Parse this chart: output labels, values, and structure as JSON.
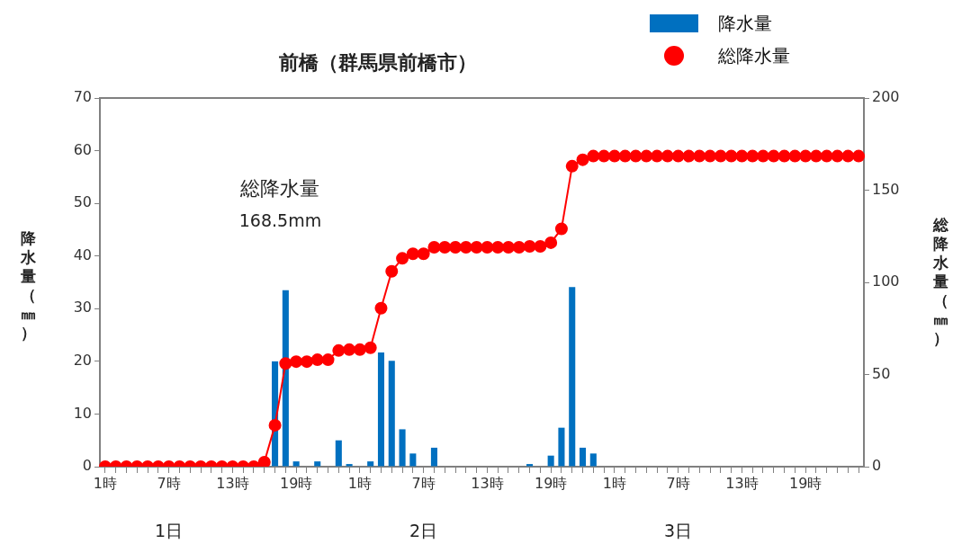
{
  "chart_data": {
    "type": "bar",
    "title": "前橋（群馬県前橋市）",
    "ylabel": "降水量（㎜）",
    "y2label": "総降水量（㎜）",
    "categories": [
      "1時",
      null,
      null,
      null,
      null,
      null,
      "7時",
      null,
      null,
      null,
      null,
      null,
      "13時",
      null,
      null,
      null,
      null,
      null,
      "19時",
      null,
      null,
      null,
      null,
      null,
      "1時",
      null,
      null,
      null,
      null,
      null,
      "7時",
      null,
      null,
      null,
      null,
      null,
      "13時",
      null,
      null,
      null,
      null,
      null,
      "19時",
      null,
      null,
      null,
      null,
      null,
      "1時",
      null,
      null,
      null,
      null,
      null,
      "7時",
      null,
      null,
      null,
      null,
      null,
      "13時",
      null,
      null,
      null,
      null,
      null,
      "19時",
      null,
      null,
      null,
      null,
      null
    ],
    "series": [
      {
        "name": "降水量",
        "color": "#0070c0",
        "values": [
          0,
          0,
          0,
          0,
          0,
          0,
          0,
          0,
          0,
          0,
          0,
          0,
          0,
          0,
          0,
          null,
          20,
          33.5,
          1,
          0,
          1,
          0,
          5,
          0.5,
          0,
          1,
          21.7,
          20.1,
          7.1,
          2.5,
          0,
          3.6,
          0,
          0,
          0,
          0,
          0,
          0,
          0,
          0,
          0.5,
          0,
          2.1,
          7.4,
          34.1,
          3.6,
          2.5,
          0,
          0,
          0,
          0,
          0,
          0,
          0,
          0,
          0,
          0,
          0,
          0,
          0,
          0,
          0,
          0,
          0,
          0,
          0,
          0,
          0,
          0,
          0,
          0,
          0
        ]
      },
      {
        "name": "総降水量",
        "type": "line",
        "axis": "y2",
        "color": "#ff0000",
        "values": [
          0,
          0,
          0,
          0,
          0,
          0,
          0,
          0,
          0,
          0,
          0,
          0,
          0,
          0,
          0,
          2.5,
          22.5,
          56,
          57,
          57,
          58,
          58,
          63,
          63.5,
          63.5,
          64.5,
          86,
          106,
          113,
          115.5,
          115.5,
          119,
          119,
          119,
          119,
          119,
          119,
          119,
          119,
          119,
          119.5,
          119.5,
          121.5,
          129,
          163,
          166.5,
          168.5,
          168.5,
          168.5,
          168.5,
          168.5,
          168.5,
          168.5,
          168.5,
          168.5,
          168.5,
          168.5,
          168.5,
          168.5,
          168.5,
          168.5,
          168.5,
          168.5,
          168.5,
          168.5,
          168.5,
          168.5,
          168.5,
          168.5,
          168.5,
          168.5,
          168.5
        ]
      }
    ],
    "ylim": [
      0,
      70
    ],
    "yticks": [
      0,
      10,
      20,
      30,
      40,
      50,
      60,
      70
    ],
    "y2lim": [
      0,
      200
    ],
    "y2ticks": [
      0,
      50,
      100,
      150,
      200
    ],
    "annotations": [
      "総降水量",
      "168.5mm",
      "1日",
      "2日",
      "3日"
    ],
    "grid": false,
    "legend": "top right",
    "marker": "circle",
    "line_style": "solid"
  }
}
